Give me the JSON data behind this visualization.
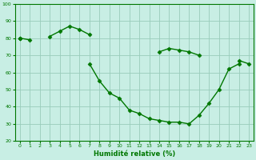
{
  "x": [
    0,
    1,
    2,
    3,
    4,
    5,
    6,
    7,
    8,
    9,
    10,
    11,
    12,
    13,
    14,
    15,
    16,
    17,
    18,
    19,
    20,
    21,
    22,
    23
  ],
  "line_top": [
    80,
    null,
    null,
    null,
    null,
    null,
    null,
    null,
    null,
    null,
    null,
    null,
    null,
    null,
    72,
    74,
    73,
    72,
    70,
    null,
    null,
    null,
    67,
    65
  ],
  "line_mid": [
    80,
    79,
    null,
    81,
    84,
    87,
    85,
    82,
    null,
    null,
    null,
    null,
    null,
    null,
    null,
    null,
    null,
    null,
    null,
    null,
    null,
    null,
    null,
    null
  ],
  "line_bot": [
    80,
    null,
    null,
    null,
    null,
    null,
    null,
    65,
    55,
    48,
    45,
    38,
    36,
    33,
    32,
    31,
    31,
    30,
    35,
    42,
    50,
    62,
    65,
    null
  ],
  "connect_top_to_bot_at7": true,
  "xlabel": "Humidité relative (%)",
  "xlim_min": -0.5,
  "xlim_max": 23.5,
  "ylim_min": 20,
  "ylim_max": 100,
  "yticks": [
    20,
    30,
    40,
    50,
    60,
    70,
    80,
    90,
    100
  ],
  "xticks": [
    0,
    1,
    2,
    3,
    4,
    5,
    6,
    7,
    8,
    9,
    10,
    11,
    12,
    13,
    14,
    15,
    16,
    17,
    18,
    19,
    20,
    21,
    22,
    23
  ],
  "line_color": "#007700",
  "bg_color": "#c8eee4",
  "grid_color": "#99ccbb",
  "marker": "D",
  "markersize": 2.5,
  "linewidth": 1.0,
  "tick_fontsize": 4.5,
  "xlabel_fontsize": 6.0
}
